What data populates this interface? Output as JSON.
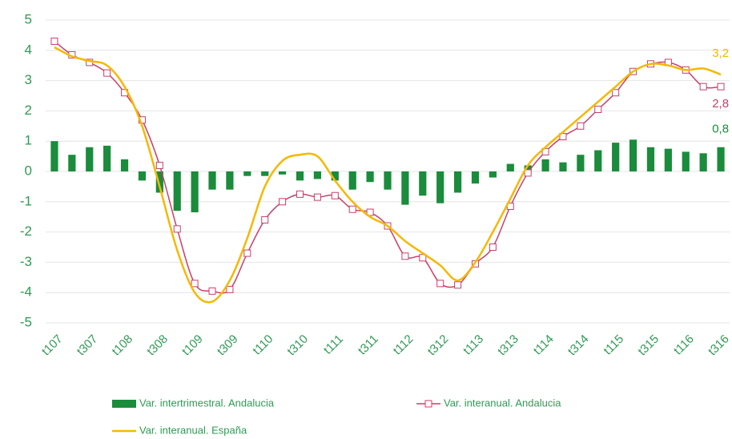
{
  "chart_data": {
    "type": "bar_line",
    "categories": [
      "t107",
      null,
      "t307",
      null,
      "t108",
      null,
      "t308",
      null,
      "t109",
      null,
      "t309",
      null,
      "t110",
      null,
      "t310",
      null,
      "t111",
      null,
      "t311",
      null,
      "t112",
      null,
      "t312",
      null,
      "t113",
      null,
      "t313",
      null,
      "t114",
      null,
      "t314",
      null,
      "t115",
      null,
      "t315",
      null,
      "t116",
      null,
      "t316"
    ],
    "series": [
      {
        "name": "Var. intertrimestral. Andalucia",
        "kind": "bar",
        "color": "#1a8c3c",
        "values": [
          1.0,
          0.55,
          0.8,
          0.85,
          0.4,
          -0.3,
          -0.7,
          -1.3,
          -1.35,
          -0.6,
          -0.6,
          -0.15,
          -0.15,
          -0.1,
          -0.3,
          -0.25,
          -0.3,
          -0.6,
          -0.35,
          -0.6,
          -1.1,
          -0.8,
          -1.05,
          -0.7,
          -0.4,
          -0.2,
          0.25,
          0.2,
          0.4,
          0.3,
          0.55,
          0.7,
          0.95,
          1.05,
          0.8,
          0.75,
          0.65,
          0.6,
          0.8
        ],
        "value_labels": [
          null,
          null,
          null,
          null,
          null,
          null,
          null,
          null,
          null,
          null,
          null,
          null,
          null,
          null,
          null,
          null,
          null,
          null,
          null,
          null,
          null,
          null,
          null,
          null,
          null,
          null,
          null,
          null,
          null,
          null,
          null,
          null,
          null,
          null,
          null,
          null,
          null,
          null,
          "0,8"
        ]
      },
      {
        "name": "Var. interanual. Andalucia",
        "kind": "line-marker",
        "color": "#c8406a",
        "values": [
          4.3,
          3.85,
          3.6,
          3.25,
          2.6,
          1.7,
          0.2,
          -1.9,
          -3.7,
          -3.95,
          -3.9,
          -2.7,
          -1.6,
          -1.0,
          -0.75,
          -0.85,
          -0.8,
          -1.25,
          -1.35,
          -1.8,
          -2.8,
          -2.85,
          -3.7,
          -3.75,
          -3.05,
          -2.5,
          -1.15,
          -0.05,
          0.65,
          1.15,
          1.5,
          2.05,
          2.6,
          3.3,
          3.55,
          3.6,
          3.35,
          2.8,
          2.8
        ],
        "value_labels": [
          null,
          null,
          null,
          null,
          null,
          null,
          null,
          null,
          null,
          null,
          null,
          null,
          null,
          null,
          null,
          null,
          null,
          null,
          null,
          null,
          null,
          null,
          null,
          null,
          null,
          null,
          null,
          null,
          null,
          null,
          null,
          null,
          null,
          null,
          null,
          null,
          null,
          null,
          "2,8"
        ]
      },
      {
        "name": "Var. interanual. España",
        "kind": "line",
        "color": "#f5b800",
        "values": [
          4.1,
          3.8,
          3.65,
          3.5,
          2.8,
          1.5,
          -0.5,
          -2.6,
          -4.0,
          -4.3,
          -3.6,
          -2.2,
          -0.5,
          0.35,
          0.55,
          0.5,
          -0.3,
          -1.0,
          -1.5,
          -1.8,
          -2.3,
          -2.7,
          -3.1,
          -3.6,
          -3.0,
          -2.0,
          -0.9,
          0.2,
          0.8,
          1.3,
          1.8,
          2.3,
          2.8,
          3.3,
          3.55,
          3.5,
          3.35,
          3.4,
          3.2
        ],
        "value_labels": [
          null,
          null,
          null,
          null,
          null,
          null,
          null,
          null,
          null,
          null,
          null,
          null,
          null,
          null,
          null,
          null,
          null,
          null,
          null,
          null,
          null,
          null,
          null,
          null,
          null,
          null,
          null,
          null,
          null,
          null,
          null,
          null,
          null,
          null,
          null,
          null,
          null,
          null,
          "3,2"
        ]
      }
    ],
    "ylim": [
      -5,
      5
    ],
    "yticks": [
      -5,
      -4,
      -3,
      -2,
      -1,
      0,
      1,
      2,
      3,
      4,
      5
    ],
    "grid": true,
    "legend": "bottom"
  }
}
